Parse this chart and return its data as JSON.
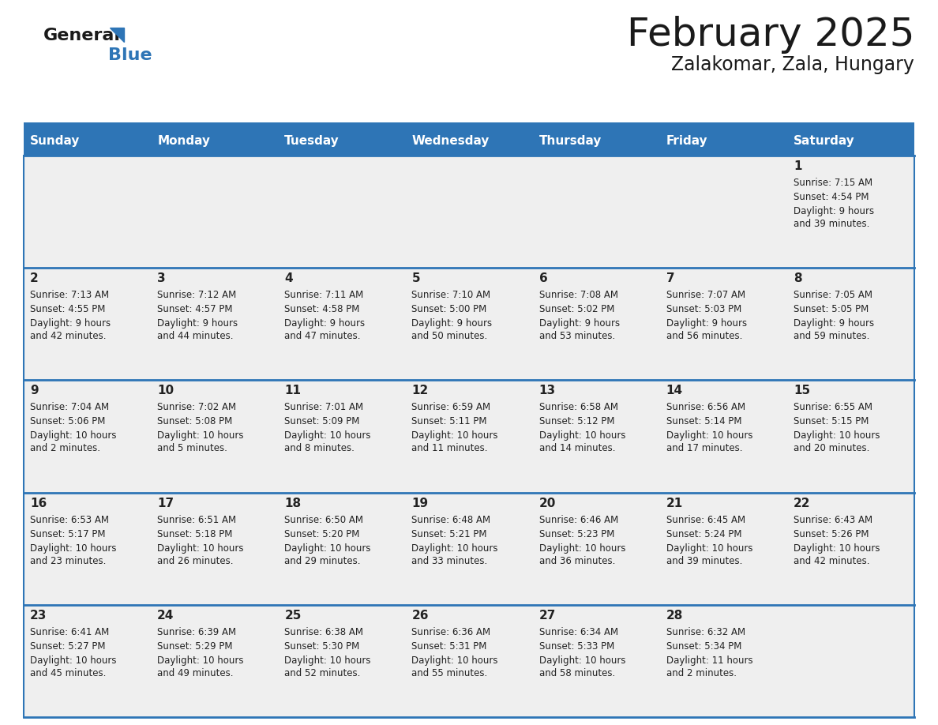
{
  "title": "February 2025",
  "subtitle": "Zalakomar, Zala, Hungary",
  "days_of_week": [
    "Sunday",
    "Monday",
    "Tuesday",
    "Wednesday",
    "Thursday",
    "Friday",
    "Saturday"
  ],
  "header_bg": "#2E75B6",
  "header_text": "#FFFFFF",
  "cell_bg": "#EFEFEF",
  "grid_line_color": "#2E75B6",
  "text_color": "#222222",
  "title_color": "#1a1a1a",
  "logo_general_color": "#1a1a1a",
  "logo_blue_color": "#2E75B6",
  "weeks": [
    [
      {
        "day": null,
        "sunrise": null,
        "sunset": null,
        "daylight": null
      },
      {
        "day": null,
        "sunrise": null,
        "sunset": null,
        "daylight": null
      },
      {
        "day": null,
        "sunrise": null,
        "sunset": null,
        "daylight": null
      },
      {
        "day": null,
        "sunrise": null,
        "sunset": null,
        "daylight": null
      },
      {
        "day": null,
        "sunrise": null,
        "sunset": null,
        "daylight": null
      },
      {
        "day": null,
        "sunrise": null,
        "sunset": null,
        "daylight": null
      },
      {
        "day": 1,
        "sunrise": "7:15 AM",
        "sunset": "4:54 PM",
        "daylight": "9 hours and 39 minutes."
      }
    ],
    [
      {
        "day": 2,
        "sunrise": "7:13 AM",
        "sunset": "4:55 PM",
        "daylight": "9 hours and 42 minutes."
      },
      {
        "day": 3,
        "sunrise": "7:12 AM",
        "sunset": "4:57 PM",
        "daylight": "9 hours and 44 minutes."
      },
      {
        "day": 4,
        "sunrise": "7:11 AM",
        "sunset": "4:58 PM",
        "daylight": "9 hours and 47 minutes."
      },
      {
        "day": 5,
        "sunrise": "7:10 AM",
        "sunset": "5:00 PM",
        "daylight": "9 hours and 50 minutes."
      },
      {
        "day": 6,
        "sunrise": "7:08 AM",
        "sunset": "5:02 PM",
        "daylight": "9 hours and 53 minutes."
      },
      {
        "day": 7,
        "sunrise": "7:07 AM",
        "sunset": "5:03 PM",
        "daylight": "9 hours and 56 minutes."
      },
      {
        "day": 8,
        "sunrise": "7:05 AM",
        "sunset": "5:05 PM",
        "daylight": "9 hours and 59 minutes."
      }
    ],
    [
      {
        "day": 9,
        "sunrise": "7:04 AM",
        "sunset": "5:06 PM",
        "daylight": "10 hours and 2 minutes."
      },
      {
        "day": 10,
        "sunrise": "7:02 AM",
        "sunset": "5:08 PM",
        "daylight": "10 hours and 5 minutes."
      },
      {
        "day": 11,
        "sunrise": "7:01 AM",
        "sunset": "5:09 PM",
        "daylight": "10 hours and 8 minutes."
      },
      {
        "day": 12,
        "sunrise": "6:59 AM",
        "sunset": "5:11 PM",
        "daylight": "10 hours and 11 minutes."
      },
      {
        "day": 13,
        "sunrise": "6:58 AM",
        "sunset": "5:12 PM",
        "daylight": "10 hours and 14 minutes."
      },
      {
        "day": 14,
        "sunrise": "6:56 AM",
        "sunset": "5:14 PM",
        "daylight": "10 hours and 17 minutes."
      },
      {
        "day": 15,
        "sunrise": "6:55 AM",
        "sunset": "5:15 PM",
        "daylight": "10 hours and 20 minutes."
      }
    ],
    [
      {
        "day": 16,
        "sunrise": "6:53 AM",
        "sunset": "5:17 PM",
        "daylight": "10 hours and 23 minutes."
      },
      {
        "day": 17,
        "sunrise": "6:51 AM",
        "sunset": "5:18 PM",
        "daylight": "10 hours and 26 minutes."
      },
      {
        "day": 18,
        "sunrise": "6:50 AM",
        "sunset": "5:20 PM",
        "daylight": "10 hours and 29 minutes."
      },
      {
        "day": 19,
        "sunrise": "6:48 AM",
        "sunset": "5:21 PM",
        "daylight": "10 hours and 33 minutes."
      },
      {
        "day": 20,
        "sunrise": "6:46 AM",
        "sunset": "5:23 PM",
        "daylight": "10 hours and 36 minutes."
      },
      {
        "day": 21,
        "sunrise": "6:45 AM",
        "sunset": "5:24 PM",
        "daylight": "10 hours and 39 minutes."
      },
      {
        "day": 22,
        "sunrise": "6:43 AM",
        "sunset": "5:26 PM",
        "daylight": "10 hours and 42 minutes."
      }
    ],
    [
      {
        "day": 23,
        "sunrise": "6:41 AM",
        "sunset": "5:27 PM",
        "daylight": "10 hours and 45 minutes."
      },
      {
        "day": 24,
        "sunrise": "6:39 AM",
        "sunset": "5:29 PM",
        "daylight": "10 hours and 49 minutes."
      },
      {
        "day": 25,
        "sunrise": "6:38 AM",
        "sunset": "5:30 PM",
        "daylight": "10 hours and 52 minutes."
      },
      {
        "day": 26,
        "sunrise": "6:36 AM",
        "sunset": "5:31 PM",
        "daylight": "10 hours and 55 minutes."
      },
      {
        "day": 27,
        "sunrise": "6:34 AM",
        "sunset": "5:33 PM",
        "daylight": "10 hours and 58 minutes."
      },
      {
        "day": 28,
        "sunrise": "6:32 AM",
        "sunset": "5:34 PM",
        "daylight": "11 hours and 2 minutes."
      },
      {
        "day": null,
        "sunrise": null,
        "sunset": null,
        "daylight": null
      }
    ]
  ]
}
